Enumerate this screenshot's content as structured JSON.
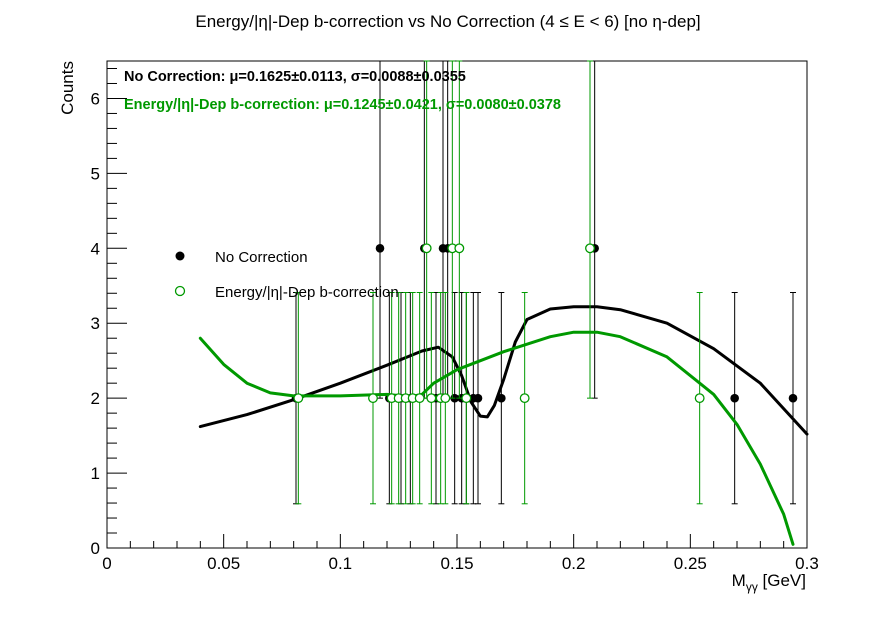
{
  "title": "Energy/|η|-Dep b-correction vs No Correction   (4 ≤ E < 6)   [no η-dep]",
  "stats": {
    "nocorr": "No Correction: μ=0.1625±0.0113, σ=0.0088±0.0355",
    "corr": "Energy/|η|-Dep b-correction: μ=0.1245±0.0421, σ=0.0080±0.0378"
  },
  "colors": {
    "nocorr": "#000000",
    "corr": "#009900"
  },
  "chart_data": {
    "type": "scatter",
    "title": "Energy/|η|-Dep b-correction vs No Correction   (4 ≤ E < 6)   [no η-dep]",
    "xlabel": "M_{γγ} [GeV]",
    "ylabel": "Counts",
    "xlim": [
      0,
      0.3
    ],
    "ylim": [
      0,
      6.5
    ],
    "xticks": [
      "0",
      "0.05",
      "0.1",
      "0.15",
      "0.2",
      "0.25",
      "0.3"
    ],
    "yticks": [
      "0",
      "1",
      "2",
      "3",
      "4",
      "5",
      "6"
    ],
    "legend_position": "left-middle",
    "series": [
      {
        "name": "No Correction",
        "marker": "filled-circle",
        "color": "#000000",
        "points": [
          {
            "x": 0.081,
            "y": 2,
            "lo": 0.59,
            "hi": 3.41
          },
          {
            "x": 0.117,
            "y": 4,
            "lo": 2.0,
            "hi": 6.5
          },
          {
            "x": 0.121,
            "y": 2,
            "lo": 0.59,
            "hi": 3.41
          },
          {
            "x": 0.126,
            "y": 2,
            "lo": 0.59,
            "hi": 3.41
          },
          {
            "x": 0.13,
            "y": 2,
            "lo": 0.59,
            "hi": 3.41
          },
          {
            "x": 0.136,
            "y": 4,
            "lo": 2.0,
            "hi": 6.5
          },
          {
            "x": 0.141,
            "y": 2,
            "lo": 0.59,
            "hi": 3.41
          },
          {
            "x": 0.144,
            "y": 4,
            "lo": 2.0,
            "hi": 6.5
          },
          {
            "x": 0.146,
            "y": 4,
            "lo": 2.0,
            "hi": 6.5
          },
          {
            "x": 0.149,
            "y": 2,
            "lo": 0.59,
            "hi": 3.41
          },
          {
            "x": 0.152,
            "y": 2,
            "lo": 0.59,
            "hi": 3.41
          },
          {
            "x": 0.154,
            "y": 2,
            "lo": 0.59,
            "hi": 3.41
          },
          {
            "x": 0.157,
            "y": 2,
            "lo": 0.59,
            "hi": 3.41
          },
          {
            "x": 0.159,
            "y": 2,
            "lo": 0.59,
            "hi": 3.41
          },
          {
            "x": 0.169,
            "y": 2,
            "lo": 0.59,
            "hi": 3.41
          },
          {
            "x": 0.209,
            "y": 4,
            "lo": 2.0,
            "hi": 6.5
          },
          {
            "x": 0.269,
            "y": 2,
            "lo": 0.59,
            "hi": 3.41
          },
          {
            "x": 0.294,
            "y": 2,
            "lo": 0.59,
            "hi": 3.41
          }
        ],
        "fit": [
          [
            0.04,
            1.62
          ],
          [
            0.06,
            1.78
          ],
          [
            0.08,
            1.98
          ],
          [
            0.1,
            2.2
          ],
          [
            0.12,
            2.44
          ],
          [
            0.135,
            2.63
          ],
          [
            0.142,
            2.68
          ],
          [
            0.148,
            2.55
          ],
          [
            0.152,
            2.3
          ],
          [
            0.156,
            1.95
          ],
          [
            0.16,
            1.76
          ],
          [
            0.163,
            1.75
          ],
          [
            0.166,
            1.9
          ],
          [
            0.17,
            2.25
          ],
          [
            0.175,
            2.75
          ],
          [
            0.18,
            3.05
          ],
          [
            0.19,
            3.19
          ],
          [
            0.2,
            3.22
          ],
          [
            0.21,
            3.22
          ],
          [
            0.22,
            3.18
          ],
          [
            0.24,
            3.0
          ],
          [
            0.26,
            2.66
          ],
          [
            0.28,
            2.2
          ],
          [
            0.3,
            1.52
          ]
        ]
      },
      {
        "name": "Energy/|η|-Dep b-correction",
        "marker": "open-circle",
        "color": "#009900",
        "points": [
          {
            "x": 0.082,
            "y": 2,
            "lo": 0.59,
            "hi": 3.41
          },
          {
            "x": 0.114,
            "y": 2,
            "lo": 0.59,
            "hi": 3.41
          },
          {
            "x": 0.122,
            "y": 2,
            "lo": 0.59,
            "hi": 3.41
          },
          {
            "x": 0.125,
            "y": 2,
            "lo": 0.59,
            "hi": 3.41
          },
          {
            "x": 0.128,
            "y": 2,
            "lo": 0.59,
            "hi": 3.41
          },
          {
            "x": 0.131,
            "y": 2,
            "lo": 0.59,
            "hi": 3.41
          },
          {
            "x": 0.134,
            "y": 2,
            "lo": 0.59,
            "hi": 3.41
          },
          {
            "x": 0.137,
            "y": 4,
            "lo": 2.0,
            "hi": 6.5
          },
          {
            "x": 0.139,
            "y": 2,
            "lo": 0.59,
            "hi": 3.41
          },
          {
            "x": 0.143,
            "y": 2,
            "lo": 0.59,
            "hi": 3.41
          },
          {
            "x": 0.145,
            "y": 2,
            "lo": 0.59,
            "hi": 3.41
          },
          {
            "x": 0.148,
            "y": 4,
            "lo": 2.0,
            "hi": 6.5
          },
          {
            "x": 0.151,
            "y": 4,
            "lo": 2.0,
            "hi": 6.5
          },
          {
            "x": 0.154,
            "y": 2,
            "lo": 0.59,
            "hi": 3.41
          },
          {
            "x": 0.179,
            "y": 2,
            "lo": 0.59,
            "hi": 3.41
          },
          {
            "x": 0.207,
            "y": 4,
            "lo": 2.0,
            "hi": 6.5
          },
          {
            "x": 0.254,
            "y": 2,
            "lo": 0.59,
            "hi": 3.41
          }
        ],
        "fit": [
          [
            0.04,
            2.8
          ],
          [
            0.05,
            2.45
          ],
          [
            0.06,
            2.2
          ],
          [
            0.07,
            2.07
          ],
          [
            0.08,
            2.03
          ],
          [
            0.1,
            2.03
          ],
          [
            0.12,
            2.05
          ],
          [
            0.13,
            2.02
          ],
          [
            0.135,
            2.05
          ],
          [
            0.14,
            2.2
          ],
          [
            0.15,
            2.38
          ],
          [
            0.17,
            2.62
          ],
          [
            0.19,
            2.82
          ],
          [
            0.2,
            2.88
          ],
          [
            0.21,
            2.88
          ],
          [
            0.22,
            2.82
          ],
          [
            0.24,
            2.55
          ],
          [
            0.26,
            2.05
          ],
          [
            0.27,
            1.65
          ],
          [
            0.28,
            1.12
          ],
          [
            0.29,
            0.45
          ],
          [
            0.294,
            0.05
          ]
        ]
      }
    ]
  }
}
